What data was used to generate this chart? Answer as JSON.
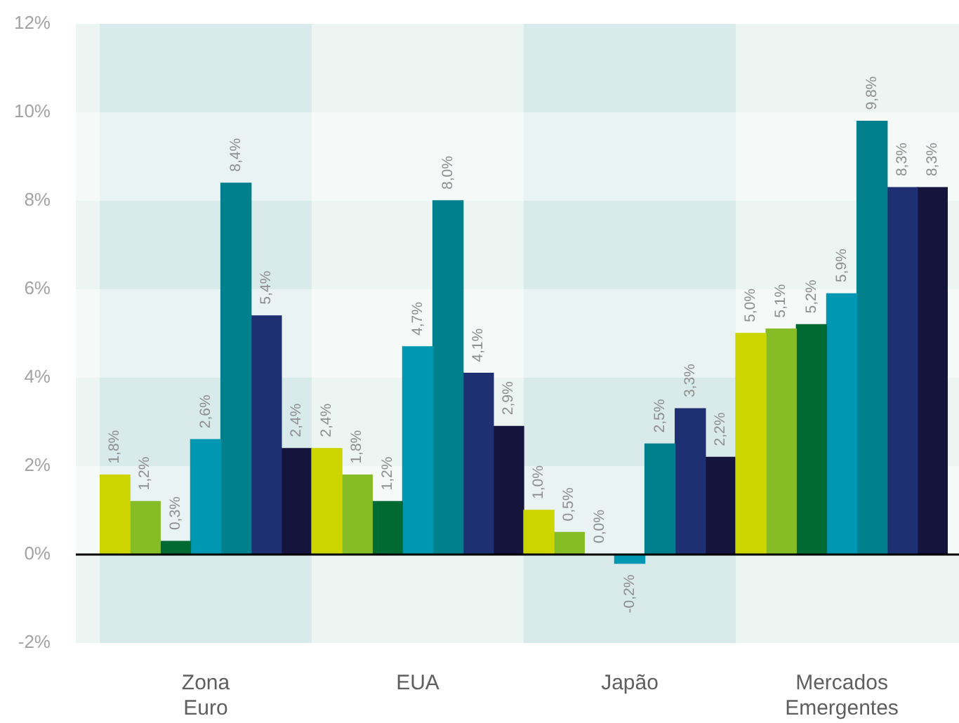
{
  "chart_data": {
    "type": "bar",
    "categories": [
      "Zona Euro",
      "EUA",
      "Japão",
      "Mercados Emergentes"
    ],
    "series": [
      {
        "color": "#cdd500",
        "values": [
          1.8,
          2.4,
          1.0,
          5.0
        ],
        "value_labels": [
          "1,8%",
          "2,4%",
          "1,0%",
          "5,0%"
        ]
      },
      {
        "color": "#86bc25",
        "values": [
          1.2,
          1.8,
          0.5,
          5.1
        ],
        "value_labels": [
          "1,2%",
          "1,8%",
          "0,5%",
          "5,1%"
        ]
      },
      {
        "color": "#006a33",
        "values": [
          0.3,
          1.2,
          0.0,
          5.2
        ],
        "value_labels": [
          "0,3%",
          "1,2%",
          "0,0%",
          "5,2%"
        ]
      },
      {
        "color": "#0097b2",
        "values": [
          2.6,
          4.7,
          -0.2,
          5.9
        ],
        "value_labels": [
          "2,6%",
          "4,7%",
          "-0,2%",
          "5,9%"
        ]
      },
      {
        "color": "#007f8d",
        "values": [
          8.4,
          8.0,
          2.5,
          9.8
        ],
        "value_labels": [
          "8,4%",
          "8,0%",
          "2,5%",
          "9,8%"
        ]
      },
      {
        "color": "#1e2f72",
        "values": [
          5.4,
          4.1,
          3.3,
          8.3
        ],
        "value_labels": [
          "5,4%",
          "4,1%",
          "3,3%",
          "8,3%"
        ]
      },
      {
        "color": "#14143c",
        "values": [
          2.4,
          2.9,
          2.2,
          8.3
        ],
        "value_labels": [
          "2,4%",
          "2,9%",
          "2,2%",
          "8,3%"
        ]
      }
    ],
    "ylim": [
      -2,
      12
    ],
    "yticks": [
      {
        "value": -2,
        "label": "-2%"
      },
      {
        "value": 0,
        "label": "0%"
      },
      {
        "value": 2,
        "label": "2%"
      },
      {
        "value": 4,
        "label": "4%"
      },
      {
        "value": 6,
        "label": "6%"
      },
      {
        "value": 8,
        "label": "8%"
      },
      {
        "value": 10,
        "label": "10%"
      },
      {
        "value": 12,
        "label": "12%"
      }
    ],
    "grid": "y",
    "legend": false
  }
}
